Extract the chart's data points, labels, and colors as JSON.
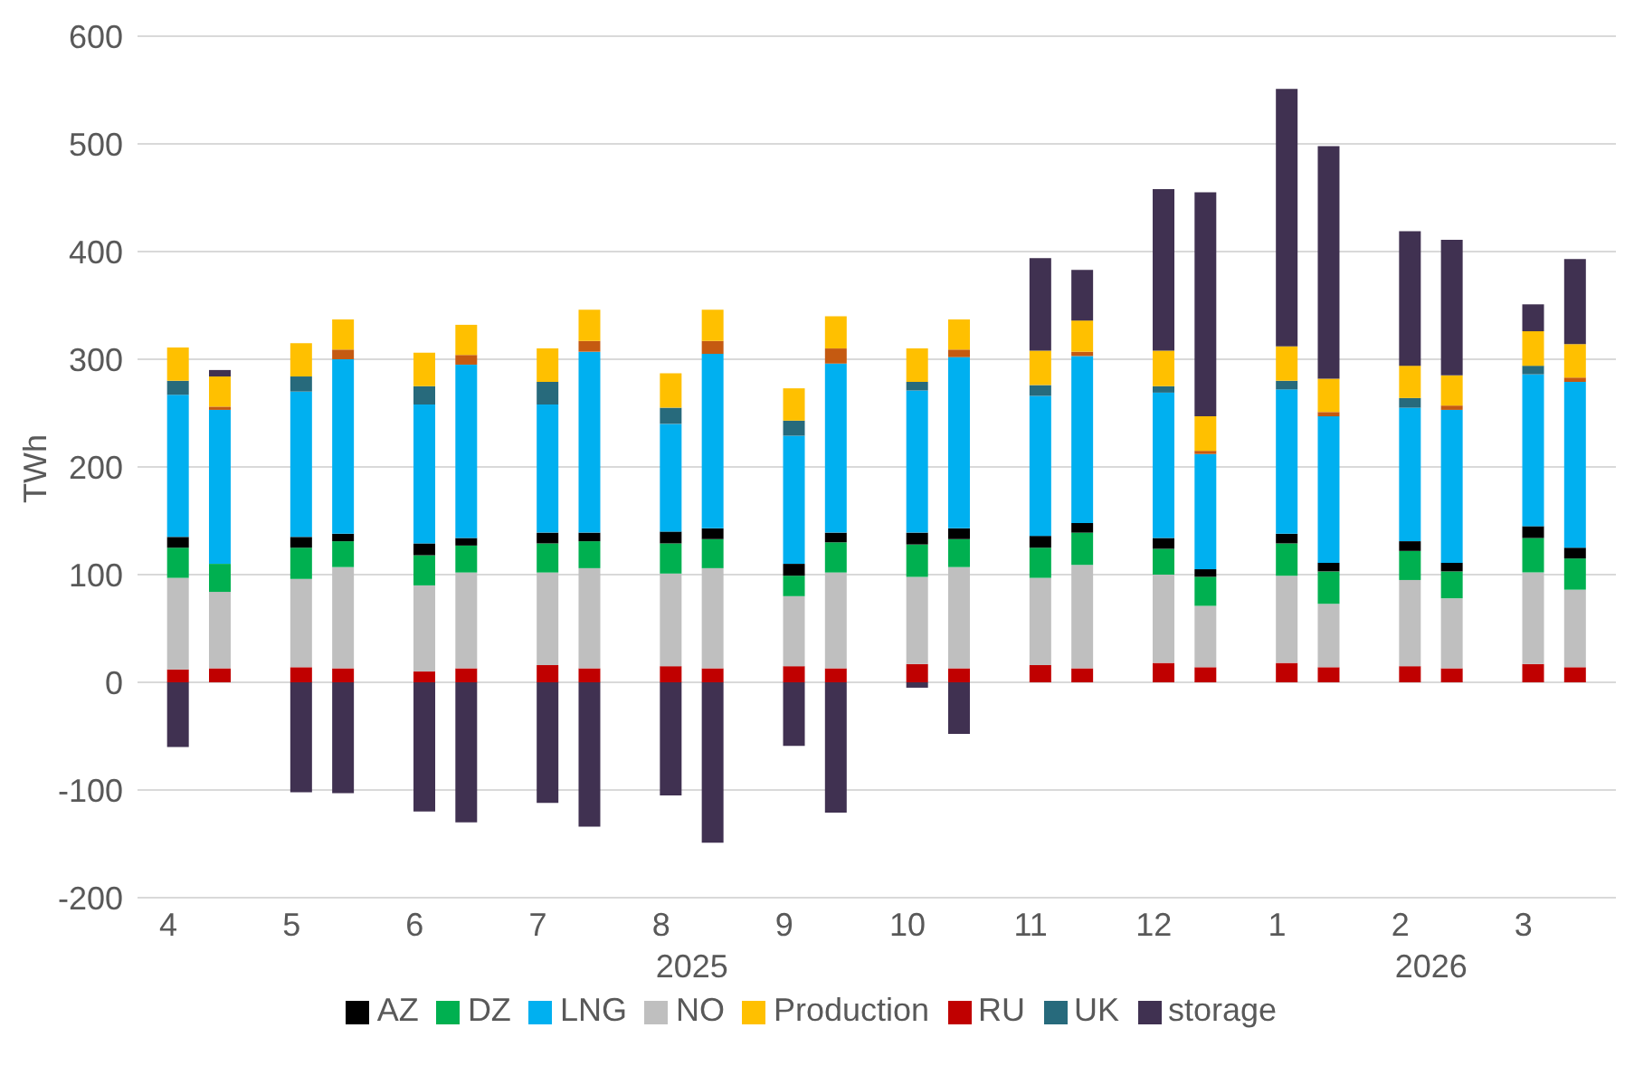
{
  "chart_data": {
    "type": "bar",
    "ylabel": "TWh",
    "stacked": true,
    "categories": [
      "4",
      null,
      "5",
      null,
      "6",
      null,
      "7",
      null,
      "8",
      null,
      "9",
      null,
      "10",
      null,
      "11",
      null,
      "12",
      null,
      "1",
      null,
      "2",
      null,
      "3",
      null
    ],
    "series": [
      {
        "name": "RU",
        "color": "#c00000",
        "values": [
          12,
          13,
          14,
          13,
          10,
          13,
          16,
          13,
          15,
          13,
          15,
          13,
          17,
          13,
          16,
          13,
          18,
          14,
          18,
          14,
          15,
          13,
          17,
          14
        ]
      },
      {
        "name": "NO",
        "color": "#bfbfbf",
        "values": [
          85,
          71,
          82,
          94,
          80,
          89,
          86,
          93,
          86,
          93,
          65,
          89,
          81,
          94,
          81,
          96,
          82,
          57,
          81,
          59,
          80,
          65,
          85,
          72
        ]
      },
      {
        "name": "DZ",
        "color": "#00b050",
        "values": [
          28,
          26,
          29,
          24,
          28,
          25,
          27,
          25,
          28,
          27,
          19,
          28,
          30,
          26,
          28,
          30,
          24,
          27,
          30,
          30,
          27,
          25,
          32,
          29
        ]
      },
      {
        "name": "AZ",
        "color": "#000000",
        "values": [
          10,
          null,
          10,
          7,
          11,
          7,
          10,
          8,
          11,
          10,
          11,
          9,
          11,
          10,
          11,
          9,
          10,
          7,
          9,
          8,
          9,
          8,
          11,
          10
        ]
      },
      {
        "name": "LNG",
        "color": "#00b0f0",
        "values": [
          132,
          143,
          135,
          162,
          129,
          161,
          119,
          168,
          100,
          162,
          119,
          157,
          132,
          159,
          130,
          155,
          135,
          107,
          134,
          136,
          124,
          142,
          141,
          154
        ]
      },
      {
        "name": "UK",
        "color": "#276a7c",
        "values": [
          13,
          null,
          14,
          null,
          17,
          null,
          21,
          null,
          15,
          null,
          14,
          null,
          8,
          null,
          10,
          null,
          6,
          null,
          8,
          null,
          9,
          null,
          8,
          null
        ]
      },
      {
        "color": "#c55a11",
        "values": [
          null,
          3,
          null,
          9,
          null,
          9,
          null,
          10,
          null,
          12,
          null,
          14,
          null,
          7,
          null,
          4,
          null,
          3,
          null,
          4,
          null,
          4,
          null,
          4
        ]
      },
      {
        "name": "Production",
        "color": "#ffc000",
        "values": [
          31,
          28,
          31,
          28,
          31,
          28,
          31,
          29,
          32,
          29,
          30,
          30,
          31,
          28,
          32,
          29,
          33,
          32,
          32,
          31,
          30,
          28,
          32,
          31
        ]
      },
      {
        "name": "storage",
        "color": "#403151",
        "values": [
          -60,
          6,
          -102,
          -103,
          -120,
          -130,
          -112,
          -134,
          -105,
          -149,
          -59,
          -121,
          -5,
          -48,
          86,
          47,
          150,
          208,
          239,
          216,
          125,
          126,
          25,
          79
        ]
      }
    ],
    "ylim": [
      -200,
      600
    ],
    "yticks": [
      -200,
      -100,
      0,
      100,
      200,
      300,
      400,
      500,
      600
    ],
    "grid": "y",
    "legend": "bottom",
    "annotations": [
      "2025",
      "2026"
    ]
  }
}
